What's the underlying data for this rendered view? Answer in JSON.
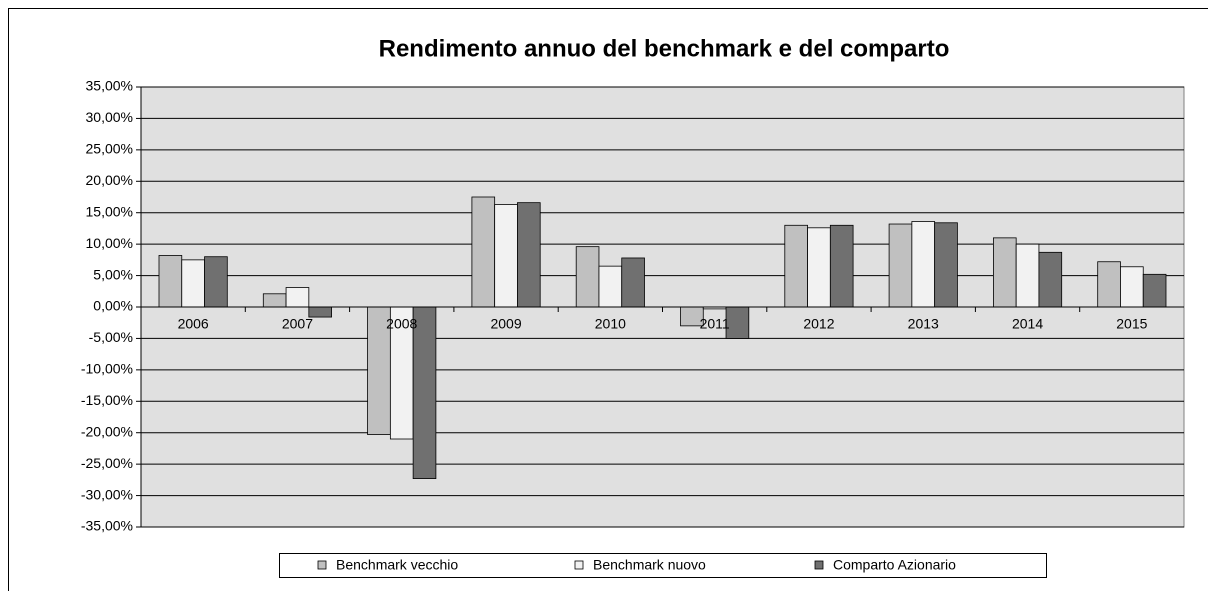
{
  "chart_data": {
    "type": "bar",
    "title": "Rendimento annuo del benchmark e del comparto",
    "categories": [
      "2006",
      "2007",
      "2008",
      "2009",
      "2010",
      "2011",
      "2012",
      "2013",
      "2014",
      "2015"
    ],
    "series": [
      {
        "name": "Benchmark vecchio",
        "color": "#c0c0c0",
        "values": [
          8.2,
          2.1,
          -20.3,
          17.5,
          9.6,
          -3.0,
          13.0,
          13.2,
          11.0,
          7.2
        ]
      },
      {
        "name": "Benchmark nuovo",
        "color": "#f2f2f2",
        "values": [
          7.5,
          3.1,
          -21.0,
          16.3,
          6.5,
          -0.3,
          12.6,
          13.6,
          10.0,
          6.4
        ]
      },
      {
        "name": "Comparto Azionario",
        "color": "#707070",
        "values": [
          8.0,
          -1.6,
          -27.3,
          16.6,
          7.8,
          -5.0,
          13.0,
          13.4,
          8.7,
          5.2
        ]
      }
    ],
    "ylim": [
      -35,
      35
    ],
    "yticks": [
      {
        "value": 35,
        "label": "35,00%"
      },
      {
        "value": 30,
        "label": "30,00%"
      },
      {
        "value": 25,
        "label": "25,00%"
      },
      {
        "value": 20,
        "label": "20,00%"
      },
      {
        "value": 15,
        "label": "15,00%"
      },
      {
        "value": 10,
        "label": "10,00%"
      },
      {
        "value": 5,
        "label": "5,00%"
      },
      {
        "value": 0,
        "label": "0,00%"
      },
      {
        "value": -5,
        "label": "-5,00%"
      },
      {
        "value": -10,
        "label": "-10,00%"
      },
      {
        "value": -15,
        "label": "-15,00%"
      },
      {
        "value": -20,
        "label": "-20,00%"
      },
      {
        "value": -25,
        "label": "-25,00%"
      },
      {
        "value": -30,
        "label": "-30,00%"
      },
      {
        "value": -35,
        "label": "-35,00%"
      }
    ],
    "grid": true,
    "legend": "bottom"
  }
}
